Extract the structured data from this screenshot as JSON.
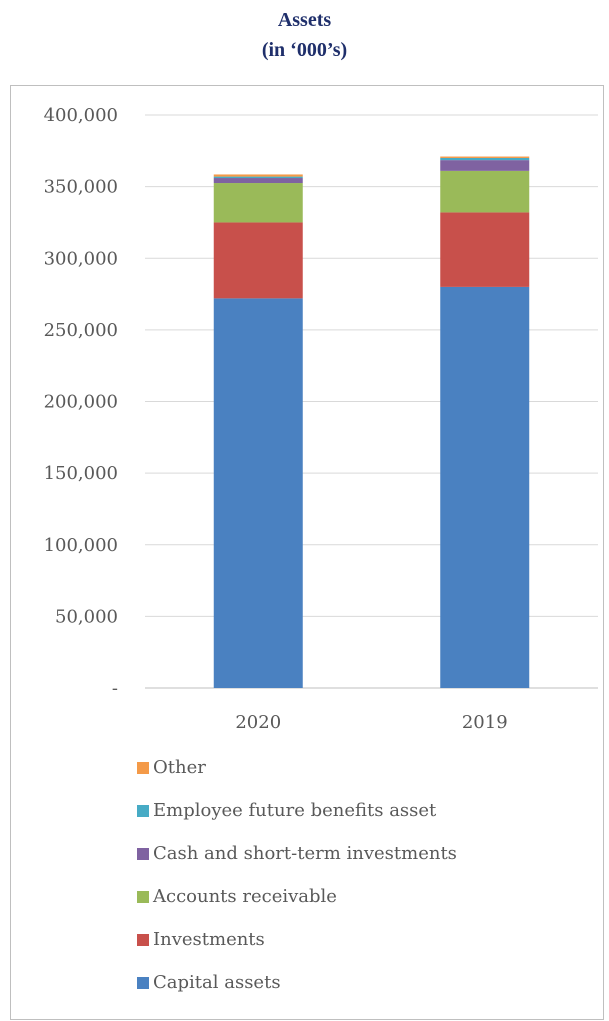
{
  "chart_data": {
    "type": "bar",
    "stacked": true,
    "title_line1": "Assets",
    "title_line2": "(in ‘000’s)",
    "categories": [
      "2020",
      "2019"
    ],
    "ylim": [
      0,
      400000
    ],
    "yticks": [
      0,
      50000,
      100000,
      150000,
      200000,
      250000,
      300000,
      350000,
      400000
    ],
    "ytick_labels": [
      "-",
      "50,000",
      "100,000",
      "150,000",
      "200,000",
      "250,000",
      "300,000",
      "350,000",
      "400,000"
    ],
    "grid": true,
    "legend_position": "bottom",
    "series": [
      {
        "name": "Capital assets",
        "color": "#4a81c1",
        "values": [
          272000,
          280000
        ]
      },
      {
        "name": "Investments",
        "color": "#c8504b",
        "values": [
          53000,
          52000
        ]
      },
      {
        "name": "Accounts receivable",
        "color": "#9aba59",
        "values": [
          27500,
          29000
        ]
      },
      {
        "name": "Cash and short-term investments",
        "color": "#7f62a1",
        "values": [
          3500,
          7500
        ]
      },
      {
        "name": "Employee future benefits asset",
        "color": "#47abc5",
        "values": [
          1000,
          1500
        ]
      },
      {
        "name": "Other",
        "color": "#f49a48",
        "values": [
          1500,
          1000
        ]
      }
    ]
  }
}
